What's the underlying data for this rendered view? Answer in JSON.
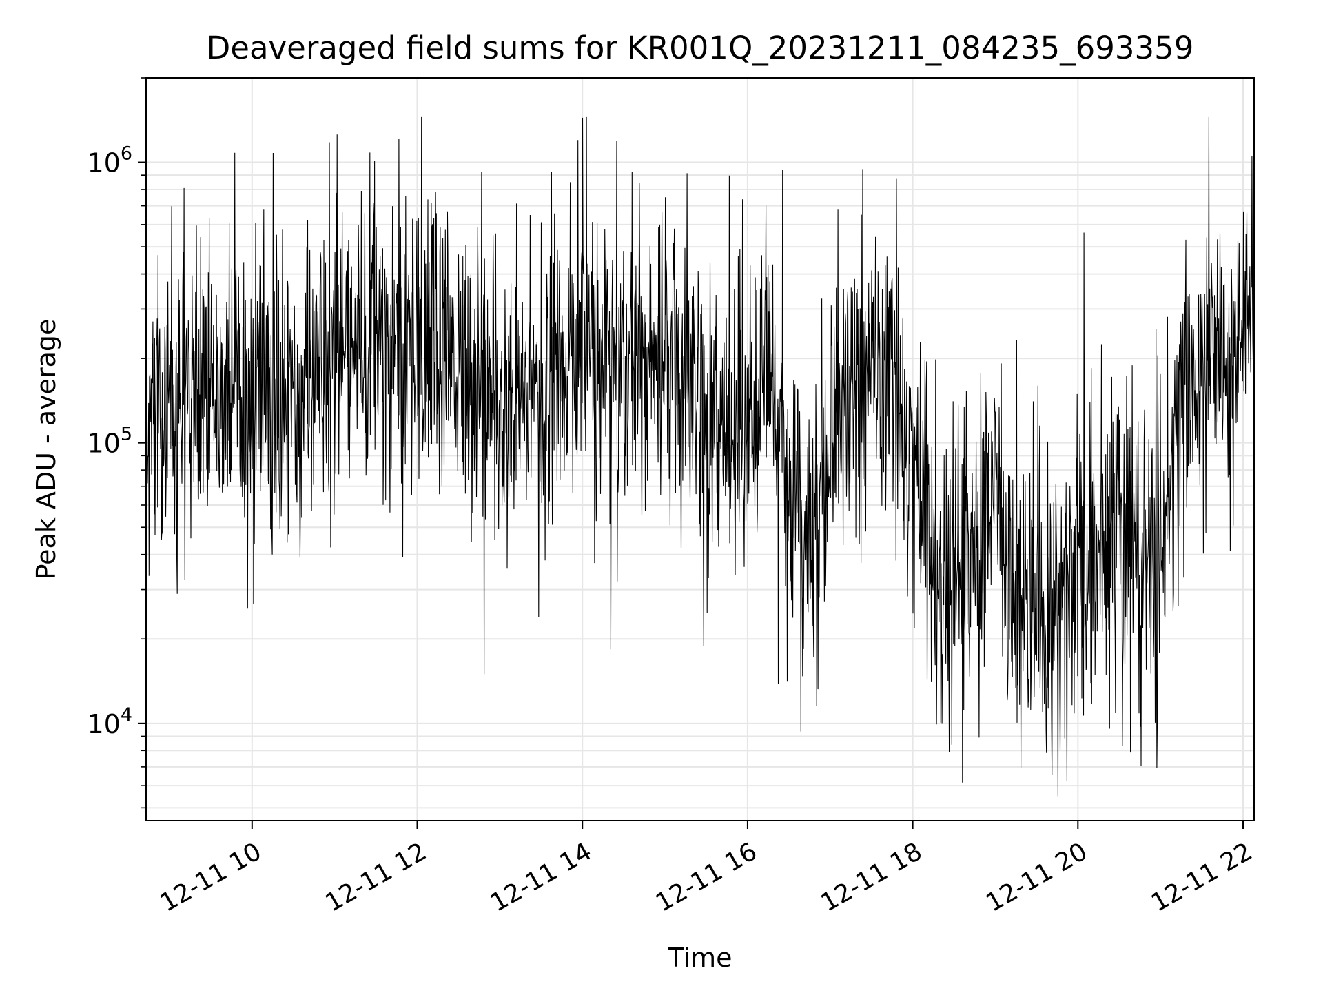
{
  "chart_data": {
    "type": "line",
    "title": "Deaveraged field sums for KR001Q_20231211_084235_693359",
    "xlabel": "Time",
    "ylabel": "Peak ADU - average",
    "x_range": [
      "2023-12-11T08:43",
      "2023-12-11T22:08"
    ],
    "y_range": [
      4500,
      2000000
    ],
    "y_scale": "log",
    "grid": true,
    "line_color": "#000000",
    "x_ticks": [
      {
        "value": "2023-12-11T10:00",
        "label": "12-11 10"
      },
      {
        "value": "2023-12-11T12:00",
        "label": "12-11 12"
      },
      {
        "value": "2023-12-11T14:00",
        "label": "12-11 14"
      },
      {
        "value": "2023-12-11T16:00",
        "label": "12-11 16"
      },
      {
        "value": "2023-12-11T18:00",
        "label": "12-11 18"
      },
      {
        "value": "2023-12-11T20:00",
        "label": "12-11 20"
      },
      {
        "value": "2023-12-11T22:00",
        "label": "12-11 22"
      }
    ],
    "y_ticks": [
      {
        "value": 10000,
        "base": "10",
        "exp": "4"
      },
      {
        "value": 100000,
        "base": "10",
        "exp": "5"
      },
      {
        "value": 1000000,
        "base": "10",
        "exp": "6"
      }
    ],
    "series": [
      {
        "points": [
          [
            "2023-12-11T08:45",
            150000
          ],
          [
            "2023-12-11T09:00",
            140000
          ],
          [
            "2023-12-11T09:15",
            160000
          ],
          [
            "2023-12-11T09:30",
            145000
          ],
          [
            "2023-12-11T09:45",
            150000
          ],
          [
            "2023-12-11T10:00",
            130000
          ],
          [
            "2023-12-11T10:15",
            120000
          ],
          [
            "2023-12-11T10:30",
            150000
          ],
          [
            "2023-12-11T10:45",
            170000
          ],
          [
            "2023-12-11T11:00",
            180000
          ],
          [
            "2023-12-11T11:15",
            200000
          ],
          [
            "2023-12-11T11:30",
            210000
          ],
          [
            "2023-12-11T11:45",
            190000
          ],
          [
            "2023-12-11T12:00",
            180000
          ],
          [
            "2023-12-11T12:15",
            200000
          ],
          [
            "2023-12-11T12:30",
            190000
          ],
          [
            "2023-12-11T12:45",
            140000
          ],
          [
            "2023-12-11T13:00",
            120000
          ],
          [
            "2023-12-11T13:15",
            130000
          ],
          [
            "2023-12-11T13:30",
            150000
          ],
          [
            "2023-12-11T13:45",
            200000
          ],
          [
            "2023-12-11T14:00",
            250000
          ],
          [
            "2023-12-11T14:15",
            230000
          ],
          [
            "2023-12-11T14:30",
            180000
          ],
          [
            "2023-12-11T14:45",
            200000
          ],
          [
            "2023-12-11T15:00",
            250000
          ],
          [
            "2023-12-11T15:15",
            180000
          ],
          [
            "2023-12-11T15:30",
            130000
          ],
          [
            "2023-12-11T15:45",
            100000
          ],
          [
            "2023-12-11T16:00",
            110000
          ],
          [
            "2023-12-11T16:15",
            200000
          ],
          [
            "2023-12-11T16:30",
            70000
          ],
          [
            "2023-12-11T16:45",
            45000
          ],
          [
            "2023-12-11T17:00",
            100000
          ],
          [
            "2023-12-11T17:15",
            150000
          ],
          [
            "2023-12-11T17:30",
            200000
          ],
          [
            "2023-12-11T17:45",
            180000
          ],
          [
            "2023-12-11T18:00",
            90000
          ],
          [
            "2023-12-11T18:15",
            35000
          ],
          [
            "2023-12-11T18:30",
            30000
          ],
          [
            "2023-12-11T18:45",
            45000
          ],
          [
            "2023-12-11T19:00",
            80000
          ],
          [
            "2023-12-11T19:15",
            25000
          ],
          [
            "2023-12-11T19:30",
            22000
          ],
          [
            "2023-12-11T19:45",
            25000
          ],
          [
            "2023-12-11T20:00",
            35000
          ],
          [
            "2023-12-11T20:15",
            40000
          ],
          [
            "2023-12-11T20:30",
            60000
          ],
          [
            "2023-12-11T20:45",
            35000
          ],
          [
            "2023-12-11T21:00",
            40000
          ],
          [
            "2023-12-11T21:15",
            130000
          ],
          [
            "2023-12-11T21:30",
            160000
          ],
          [
            "2023-12-11T21:45",
            200000
          ],
          [
            "2023-12-11T22:00",
            300000
          ],
          [
            "2023-12-11T22:08",
            400000
          ]
        ]
      }
    ]
  }
}
